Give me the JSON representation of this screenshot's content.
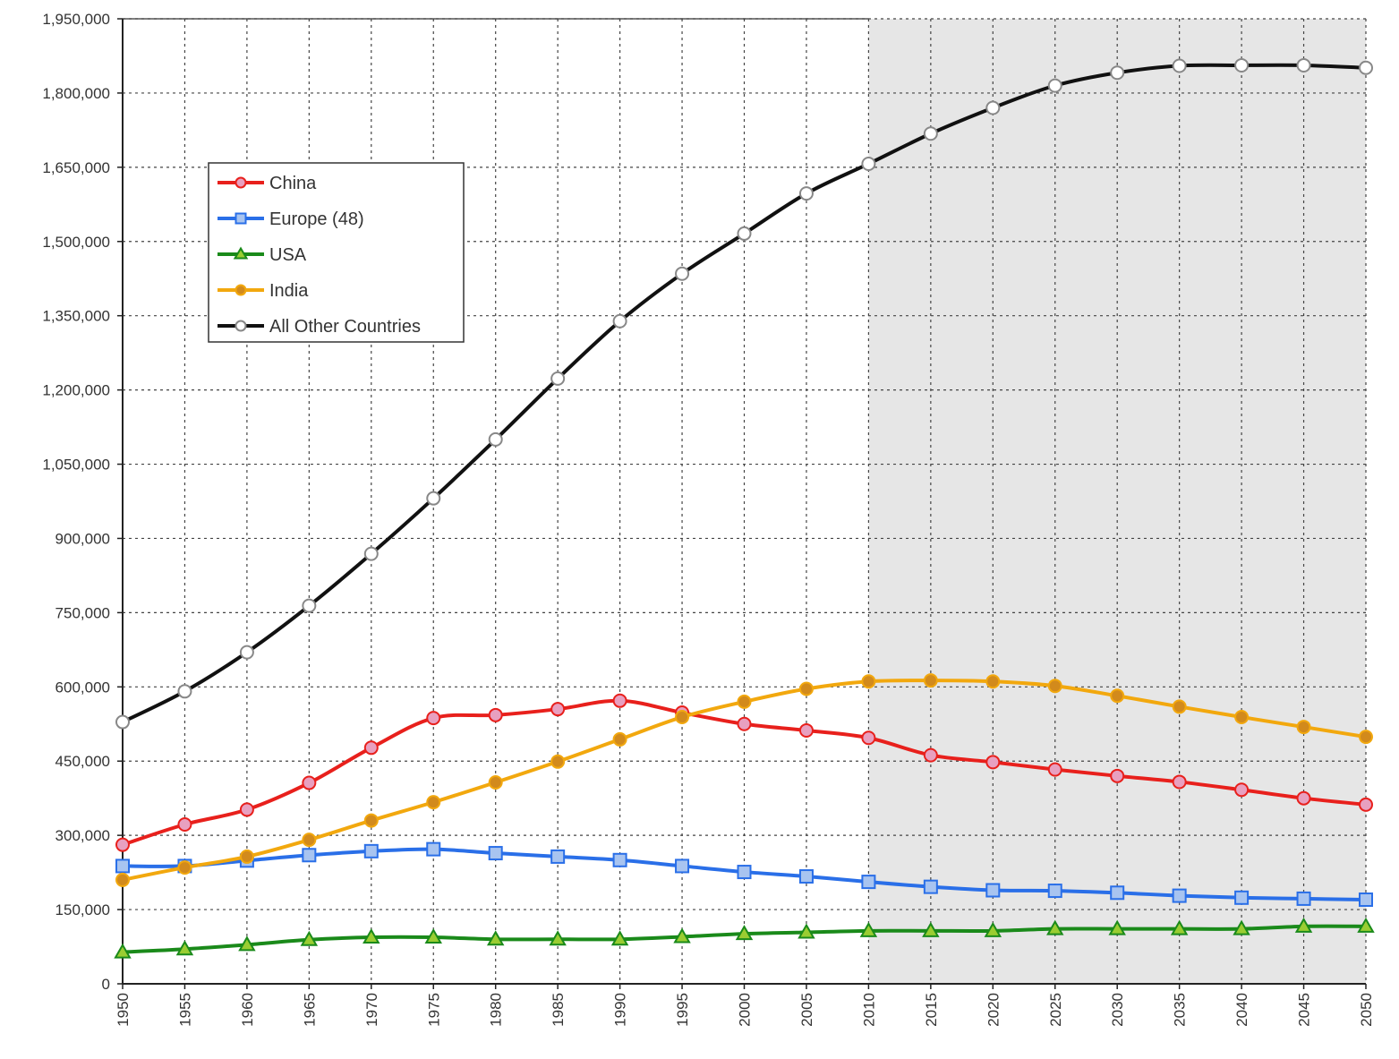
{
  "chart_data": {
    "type": "line",
    "title": "",
    "xlabel": "",
    "ylabel": "",
    "x": [
      1950,
      1955,
      1960,
      1965,
      1970,
      1975,
      1980,
      1985,
      1990,
      1995,
      2000,
      2005,
      2010,
      2015,
      2020,
      2025,
      2030,
      2035,
      2040,
      2045,
      2050
    ],
    "x_tick_labels": [
      "1950",
      "1955",
      "1960",
      "1965",
      "1970",
      "1975",
      "1980",
      "1985",
      "1990",
      "1995",
      "2000",
      "2005",
      "2010",
      "2015",
      "2020",
      "2025",
      "2030",
      "2035",
      "2040",
      "2045",
      "2050"
    ],
    "ylim": [
      0,
      1950000
    ],
    "y_ticks": [
      0,
      150000,
      300000,
      450000,
      600000,
      750000,
      900000,
      1050000,
      1200000,
      1350000,
      1500000,
      1650000,
      1800000,
      1950000
    ],
    "y_tick_labels": [
      "0",
      "150,000",
      "300,000",
      "450,000",
      "600,000",
      "750,000",
      "900,000",
      "1,050,000",
      "1,200,000",
      "1,350,000",
      "1,500,000",
      "1,650,000",
      "1,800,000",
      "1,950,000"
    ],
    "grid": true,
    "projection_shading_from": 2010,
    "legend_position": "top-left",
    "series": [
      {
        "name": "China",
        "color": "#e8201c",
        "marker": "circle",
        "marker_fill": "#e8a0c0",
        "values": [
          281000,
          322000,
          352000,
          406000,
          477000,
          537000,
          543000,
          555000,
          572000,
          548000,
          525000,
          512000,
          497000,
          462000,
          448000,
          433000,
          420000,
          408000,
          392000,
          375000,
          362000
        ]
      },
      {
        "name": "Europe (48)",
        "color": "#2a6fe8",
        "marker": "square",
        "marker_fill": "#a8c4f0",
        "values": [
          238000,
          238000,
          249000,
          260000,
          268000,
          272000,
          264000,
          257000,
          250000,
          238000,
          226000,
          217000,
          206000,
          196000,
          189000,
          188000,
          184000,
          178000,
          174000,
          172000,
          170000
        ]
      },
      {
        "name": "USA",
        "color": "#1a8a1a",
        "marker": "triangle",
        "marker_fill": "#9acd32",
        "values": [
          64000,
          70000,
          79000,
          89000,
          94000,
          94000,
          90000,
          90000,
          90000,
          95000,
          101000,
          104000,
          107000,
          107000,
          107000,
          111000,
          111000,
          111000,
          111000,
          116000,
          116000
        ]
      },
      {
        "name": "India",
        "color": "#f2a80e",
        "marker": "circle",
        "marker_fill": "#d28a1c",
        "values": [
          210000,
          235000,
          257000,
          291000,
          330000,
          367000,
          407000,
          449000,
          494000,
          539000,
          570000,
          596000,
          611000,
          613000,
          611000,
          602000,
          582000,
          560000,
          539000,
          519000,
          499000
        ]
      },
      {
        "name": "All Other Countries",
        "color": "#111111",
        "marker": "circle",
        "marker_fill": "#ffffff",
        "values": [
          529000,
          591000,
          670000,
          764000,
          869000,
          981000,
          1100000,
          1223000,
          1339000,
          1435000,
          1516000,
          1597000,
          1657000,
          1718000,
          1770000,
          1815000,
          1841000,
          1855000,
          1856000,
          1856000,
          1851000
        ]
      }
    ]
  }
}
